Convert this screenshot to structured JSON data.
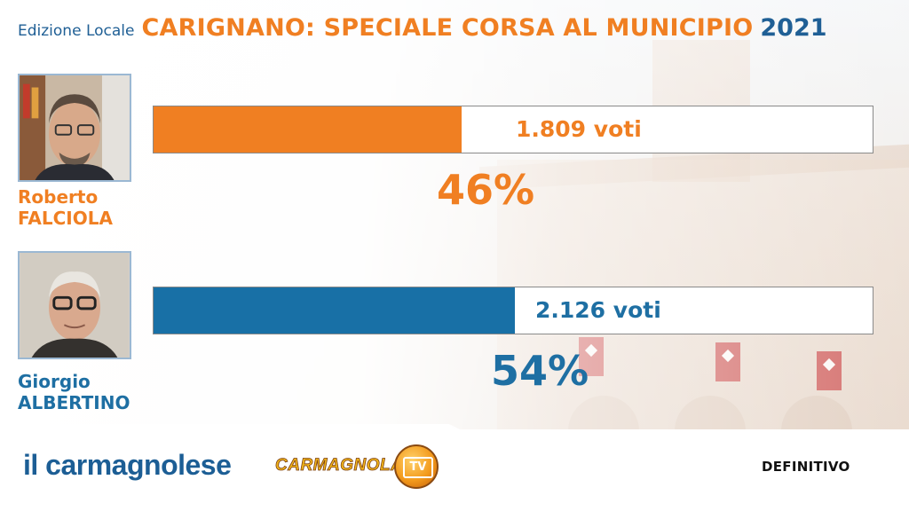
{
  "header": {
    "edition": "Edizione Locale",
    "title": "CARIGNANO: SPECIALE CORSA AL MUNICIPIO",
    "year": "2021"
  },
  "candidates": [
    {
      "first_name": "Roberto",
      "last_name": "FALCIOLA",
      "votes_label": "1.809 voti",
      "percent_label": "46%",
      "share": 0.46,
      "color": "#f07f22"
    },
    {
      "first_name": "Giorgio",
      "last_name": "ALBERTINO",
      "votes_label": "2.126 voti",
      "percent_label": "54%",
      "share": 0.54,
      "color": "#1870a6"
    }
  ],
  "footer": {
    "brand": "il carmagnolese",
    "tv_logo_text": "CARMAGNOLA",
    "tv_badge": "TV",
    "status": "DEFINITIVO"
  },
  "colors": {
    "orange_accent": "#f07f22",
    "blue_accent": "#1f5f95"
  }
}
